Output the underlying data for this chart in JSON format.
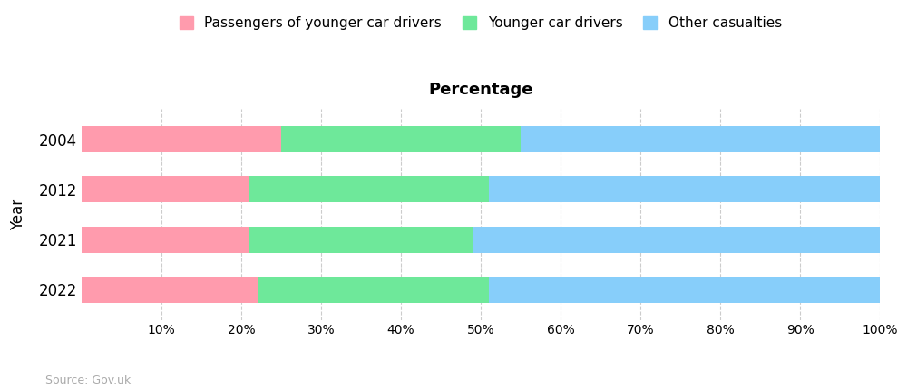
{
  "years": [
    "2004",
    "2012",
    "2021",
    "2022"
  ],
  "passengers": [
    25,
    21,
    21,
    22
  ],
  "younger_drivers": [
    30,
    30,
    28,
    29
  ],
  "other": [
    45,
    49,
    51,
    49
  ],
  "colors": {
    "passengers": "#FF9BAD",
    "younger_drivers": "#6EE89A",
    "other": "#87CEFA"
  },
  "legend_labels": [
    "Passengers of younger car drivers",
    "Younger car drivers",
    "Other casualties"
  ],
  "xlabel": "Percentage",
  "ylabel": "Year",
  "xticks": [
    10,
    20,
    30,
    40,
    50,
    60,
    70,
    80,
    90,
    100
  ],
  "source_text": "Source: Gov.uk",
  "background_color": "#ffffff"
}
